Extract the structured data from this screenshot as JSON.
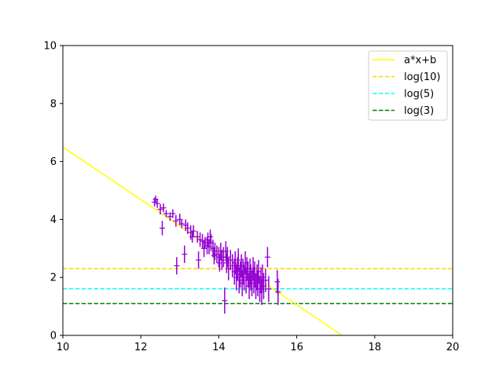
{
  "chart_data": {
    "type": "scatter",
    "title": "",
    "xlabel": "",
    "ylabel": "",
    "xlim": [
      10,
      20
    ],
    "ylim": [
      0,
      10
    ],
    "xticks": [
      10,
      12,
      14,
      16,
      18,
      20
    ],
    "yticks": [
      0,
      2,
      4,
      6,
      8,
      10
    ],
    "grid": false,
    "legend_position": "top-right",
    "fit_line": {
      "name": "a*x+b",
      "color": "#ffff00",
      "slope": -0.9075,
      "intercept": 15.575
    },
    "hlines": [
      {
        "name": "log(10)",
        "y": 2.3026,
        "color": "#ffd700"
      },
      {
        "name": "log(5)",
        "y": 1.6094,
        "color": "#00ffff"
      },
      {
        "name": "log(3)",
        "y": 1.0986,
        "color": "#008000"
      }
    ],
    "points_color": "#9400d3",
    "points": [
      {
        "x": 12.35,
        "y": 4.6,
        "yerr": 0.15
      },
      {
        "x": 12.38,
        "y": 4.7,
        "yerr": 0.12
      },
      {
        "x": 12.42,
        "y": 4.55,
        "yerr": 0.15
      },
      {
        "x": 12.5,
        "y": 4.35,
        "yerr": 0.18
      },
      {
        "x": 12.55,
        "y": 3.7,
        "yerr": 0.25
      },
      {
        "x": 12.58,
        "y": 4.4,
        "yerr": 0.15
      },
      {
        "x": 12.65,
        "y": 4.2,
        "yerr": 0.12
      },
      {
        "x": 12.75,
        "y": 4.1,
        "yerr": 0.15
      },
      {
        "x": 12.82,
        "y": 4.2,
        "yerr": 0.15
      },
      {
        "x": 12.9,
        "y": 3.95,
        "yerr": 0.2
      },
      {
        "x": 12.92,
        "y": 2.4,
        "yerr": 0.3
      },
      {
        "x": 13.0,
        "y": 4.0,
        "yerr": 0.2
      },
      {
        "x": 13.05,
        "y": 3.85,
        "yerr": 0.15
      },
      {
        "x": 13.12,
        "y": 2.8,
        "yerr": 0.3
      },
      {
        "x": 13.15,
        "y": 3.8,
        "yerr": 0.2
      },
      {
        "x": 13.2,
        "y": 3.7,
        "yerr": 0.2
      },
      {
        "x": 13.28,
        "y": 3.55,
        "yerr": 0.25
      },
      {
        "x": 13.32,
        "y": 3.4,
        "yerr": 0.2
      },
      {
        "x": 13.35,
        "y": 3.6,
        "yerr": 0.2
      },
      {
        "x": 13.45,
        "y": 3.4,
        "yerr": 0.2
      },
      {
        "x": 13.48,
        "y": 2.6,
        "yerr": 0.3
      },
      {
        "x": 13.52,
        "y": 3.3,
        "yerr": 0.25
      },
      {
        "x": 13.58,
        "y": 3.25,
        "yerr": 0.25
      },
      {
        "x": 13.62,
        "y": 3.0,
        "yerr": 0.3
      },
      {
        "x": 13.65,
        "y": 3.2,
        "yerr": 0.2
      },
      {
        "x": 13.7,
        "y": 3.1,
        "yerr": 0.3
      },
      {
        "x": 13.72,
        "y": 3.3,
        "yerr": 0.25
      },
      {
        "x": 13.75,
        "y": 3.05,
        "yerr": 0.25
      },
      {
        "x": 13.78,
        "y": 3.4,
        "yerr": 0.25
      },
      {
        "x": 13.8,
        "y": 3.2,
        "yerr": 0.3
      },
      {
        "x": 13.85,
        "y": 3.0,
        "yerr": 0.3
      },
      {
        "x": 13.88,
        "y": 2.75,
        "yerr": 0.3
      },
      {
        "x": 13.9,
        "y": 2.9,
        "yerr": 0.3
      },
      {
        "x": 13.95,
        "y": 2.8,
        "yerr": 0.3
      },
      {
        "x": 14.0,
        "y": 2.7,
        "yerr": 0.35
      },
      {
        "x": 14.02,
        "y": 2.5,
        "yerr": 0.3
      },
      {
        "x": 14.05,
        "y": 2.9,
        "yerr": 0.3
      },
      {
        "x": 14.08,
        "y": 2.6,
        "yerr": 0.35
      },
      {
        "x": 14.12,
        "y": 2.7,
        "yerr": 0.35
      },
      {
        "x": 14.15,
        "y": 1.2,
        "yerr": 0.45
      },
      {
        "x": 14.18,
        "y": 2.9,
        "yerr": 0.35
      },
      {
        "x": 14.2,
        "y": 2.5,
        "yerr": 0.35
      },
      {
        "x": 14.22,
        "y": 2.7,
        "yerr": 0.35
      },
      {
        "x": 14.25,
        "y": 2.3,
        "yerr": 0.4
      },
      {
        "x": 14.3,
        "y": 2.6,
        "yerr": 0.35
      },
      {
        "x": 14.35,
        "y": 2.4,
        "yerr": 0.4
      },
      {
        "x": 14.4,
        "y": 2.2,
        "yerr": 0.45
      },
      {
        "x": 14.42,
        "y": 2.5,
        "yerr": 0.4
      },
      {
        "x": 14.45,
        "y": 2.0,
        "yerr": 0.45
      },
      {
        "x": 14.48,
        "y": 2.3,
        "yerr": 0.4
      },
      {
        "x": 14.5,
        "y": 2.6,
        "yerr": 0.4
      },
      {
        "x": 14.52,
        "y": 1.9,
        "yerr": 0.45
      },
      {
        "x": 14.55,
        "y": 2.1,
        "yerr": 0.45
      },
      {
        "x": 14.58,
        "y": 2.4,
        "yerr": 0.4
      },
      {
        "x": 14.6,
        "y": 1.8,
        "yerr": 0.45
      },
      {
        "x": 14.62,
        "y": 2.2,
        "yerr": 0.45
      },
      {
        "x": 14.65,
        "y": 2.0,
        "yerr": 0.45
      },
      {
        "x": 14.68,
        "y": 2.5,
        "yerr": 0.4
      },
      {
        "x": 14.7,
        "y": 1.9,
        "yerr": 0.45
      },
      {
        "x": 14.72,
        "y": 2.3,
        "yerr": 0.4
      },
      {
        "x": 14.75,
        "y": 2.1,
        "yerr": 0.45
      },
      {
        "x": 14.78,
        "y": 1.7,
        "yerr": 0.45
      },
      {
        "x": 14.8,
        "y": 2.2,
        "yerr": 0.45
      },
      {
        "x": 14.82,
        "y": 2.0,
        "yerr": 0.45
      },
      {
        "x": 14.85,
        "y": 1.8,
        "yerr": 0.45
      },
      {
        "x": 14.88,
        "y": 2.3,
        "yerr": 0.4
      },
      {
        "x": 14.9,
        "y": 1.9,
        "yerr": 0.45
      },
      {
        "x": 14.92,
        "y": 2.1,
        "yerr": 0.45
      },
      {
        "x": 14.95,
        "y": 1.7,
        "yerr": 0.45
      },
      {
        "x": 14.98,
        "y": 2.0,
        "yerr": 0.45
      },
      {
        "x": 15.0,
        "y": 1.8,
        "yerr": 0.45
      },
      {
        "x": 15.02,
        "y": 2.2,
        "yerr": 0.4
      },
      {
        "x": 15.05,
        "y": 1.6,
        "yerr": 0.45
      },
      {
        "x": 15.08,
        "y": 1.9,
        "yerr": 0.45
      },
      {
        "x": 15.1,
        "y": 1.5,
        "yerr": 0.45
      },
      {
        "x": 15.12,
        "y": 2.0,
        "yerr": 0.45
      },
      {
        "x": 15.15,
        "y": 1.7,
        "yerr": 0.45
      },
      {
        "x": 15.2,
        "y": 1.9,
        "yerr": 0.4
      },
      {
        "x": 15.25,
        "y": 2.7,
        "yerr": 0.35
      },
      {
        "x": 15.28,
        "y": 1.6,
        "yerr": 0.45
      },
      {
        "x": 15.5,
        "y": 1.85,
        "yerr": 0.4
      },
      {
        "x": 15.52,
        "y": 1.5,
        "yerr": 0.45
      }
    ]
  }
}
